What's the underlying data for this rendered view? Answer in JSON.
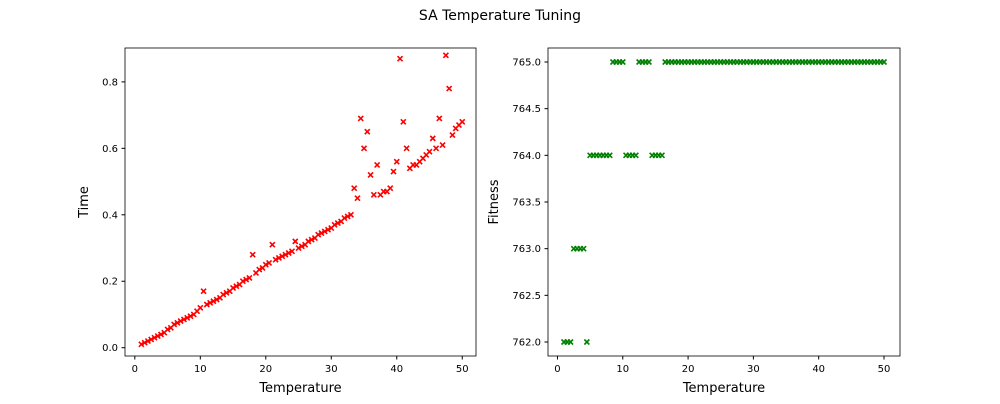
{
  "title": "SA Temperature Tuning",
  "chart_data": [
    {
      "type": "scatter",
      "x_label": "Temperature",
      "y_label": "Time",
      "color": "red",
      "marker": "x",
      "x": [
        1,
        1.5,
        2,
        2.5,
        3,
        3.5,
        4,
        4.5,
        5,
        5.5,
        6,
        6.5,
        7,
        7.5,
        8,
        8.5,
        9,
        9.5,
        10,
        10.5,
        11,
        11.5,
        12,
        12.5,
        13,
        13.5,
        14,
        14.5,
        15,
        15.5,
        16,
        16.5,
        17,
        17.5,
        18,
        18.5,
        19,
        19.5,
        20,
        20.5,
        21,
        21.5,
        22,
        22.5,
        23,
        23.5,
        24,
        24.5,
        25,
        25.5,
        26,
        26.5,
        27,
        27.5,
        28,
        28.5,
        29,
        29.5,
        30,
        30.5,
        31,
        31.5,
        32,
        32.5,
        33,
        33.5,
        34,
        34.5,
        35,
        35.5,
        36,
        36.5,
        37,
        37.5,
        38,
        38.5,
        39,
        39.5,
        40,
        40.5,
        41,
        41.5,
        42,
        42.5,
        43,
        43.5,
        44,
        44.5,
        45,
        45.5,
        46,
        46.5,
        47,
        47.5,
        48,
        48.5,
        49,
        49.5,
        50
      ],
      "values": [
        0.01,
        0.015,
        0.02,
        0.025,
        0.03,
        0.035,
        0.04,
        0.045,
        0.055,
        0.06,
        0.07,
        0.075,
        0.08,
        0.085,
        0.09,
        0.095,
        0.1,
        0.11,
        0.12,
        0.17,
        0.13,
        0.135,
        0.14,
        0.145,
        0.15,
        0.16,
        0.165,
        0.17,
        0.18,
        0.185,
        0.19,
        0.2,
        0.205,
        0.21,
        0.28,
        0.225,
        0.235,
        0.24,
        0.25,
        0.255,
        0.31,
        0.265,
        0.27,
        0.275,
        0.28,
        0.285,
        0.29,
        0.32,
        0.3,
        0.305,
        0.31,
        0.32,
        0.325,
        0.33,
        0.34,
        0.345,
        0.35,
        0.355,
        0.36,
        0.37,
        0.375,
        0.38,
        0.39,
        0.395,
        0.4,
        0.48,
        0.45,
        0.69,
        0.6,
        0.65,
        0.52,
        0.46,
        0.55,
        0.46,
        0.47,
        0.47,
        0.48,
        0.53,
        0.56,
        0.87,
        0.68,
        0.6,
        0.54,
        0.55,
        0.55,
        0.56,
        0.57,
        0.58,
        0.59,
        0.63,
        0.6,
        0.69,
        0.61,
        0.88,
        0.78,
        0.64,
        0.66,
        0.67,
        0.68
      ],
      "xlim": [
        -1.5,
        52.1
      ],
      "ylim": [
        -0.025,
        0.902
      ],
      "xticks": [
        0,
        10,
        20,
        30,
        40,
        50
      ],
      "yticks": [
        {
          "value": 0,
          "label": "0.0"
        },
        0.2,
        0.4,
        0.6,
        0.8
      ]
    },
    {
      "type": "scatter",
      "x_label": "Temperature",
      "y_label": "Fitness",
      "color": "green",
      "marker": "x",
      "x": [
        1,
        1.5,
        2,
        2.5,
        3,
        3.5,
        4,
        4.5,
        5,
        5.5,
        6,
        6.5,
        7,
        7.5,
        8,
        8.5,
        9,
        9.5,
        10,
        10.5,
        11,
        11.5,
        12,
        12.5,
        13,
        13.5,
        14,
        14.5,
        15,
        15.5,
        16,
        16.5,
        17,
        17.5,
        18,
        18.5,
        19,
        19.5,
        20,
        20.5,
        21,
        21.5,
        22,
        22.5,
        23,
        23.5,
        24,
        24.5,
        25,
        25.5,
        26,
        26.5,
        27,
        27.5,
        28,
        28.5,
        29,
        29.5,
        30,
        30.5,
        31,
        31.5,
        32,
        32.5,
        33,
        33.5,
        34,
        34.5,
        35,
        35.5,
        36,
        36.5,
        37,
        37.5,
        38,
        38.5,
        39,
        39.5,
        40,
        40.5,
        41,
        41.5,
        42,
        42.5,
        43,
        43.5,
        44,
        44.5,
        45,
        45.5,
        46,
        46.5,
        47,
        47.5,
        48,
        48.5,
        49,
        49.5,
        50
      ],
      "values": [
        762,
        762,
        762,
        763,
        763,
        763,
        763,
        762,
        764,
        764,
        764,
        764,
        764,
        764,
        764,
        765,
        765,
        765,
        765,
        764,
        764,
        764,
        764,
        765,
        765,
        765,
        765,
        764,
        764,
        764,
        764,
        765,
        765,
        765,
        765,
        765,
        765,
        765,
        765,
        765,
        765,
        765,
        765,
        765,
        765,
        765,
        765,
        765,
        765,
        765,
        765,
        765,
        765,
        765,
        765,
        765,
        765,
        765,
        765,
        765,
        765,
        765,
        765,
        765,
        765,
        765,
        765,
        765,
        765,
        765,
        765,
        765,
        765,
        765,
        765,
        765,
        765,
        765,
        765,
        765,
        765,
        765,
        765,
        765,
        765,
        765,
        765,
        765,
        765,
        765,
        765,
        765,
        765,
        765,
        765,
        765,
        765,
        765,
        765
      ],
      "xlim": [
        -1.45,
        52.45
      ],
      "ylim": [
        761.85,
        765.15
      ],
      "xticks": [
        0,
        10,
        20,
        30,
        40,
        50
      ],
      "yticks": [
        {
          "value": 762,
          "label": "762.0"
        },
        762.5,
        {
          "value": 763,
          "label": "763.0"
        },
        763.5,
        {
          "value": 764,
          "label": "764.0"
        },
        764.5,
        {
          "value": 765,
          "label": "765.0"
        }
      ]
    }
  ]
}
